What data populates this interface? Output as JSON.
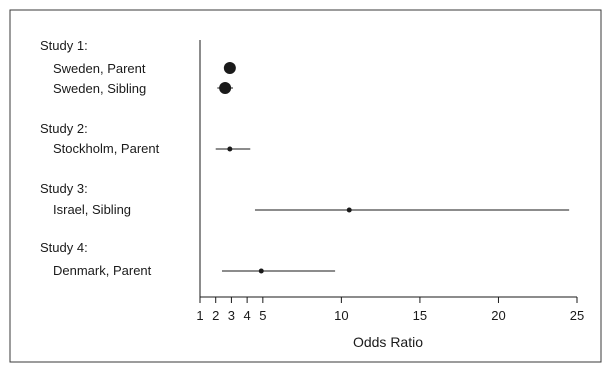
{
  "chart_data": {
    "type": "forest",
    "xlabel": "Odds Ratio",
    "xlim": [
      1,
      25
    ],
    "xticks": [
      1,
      2,
      3,
      4,
      5,
      10,
      15,
      20,
      25
    ],
    "groups": [
      {
        "label": "Study 1:",
        "rows": [
          {
            "label": "Sweden, Parent",
            "or": 2.9,
            "ci": [
              2.6,
              3.2
            ],
            "marker": "large"
          },
          {
            "label": "Sweden, Sibling",
            "or": 2.6,
            "ci": [
              2.1,
              3.1
            ],
            "marker": "large"
          }
        ]
      },
      {
        "label": "Study 2:",
        "rows": [
          {
            "label": "Stockholm, Parent",
            "or": 2.9,
            "ci": [
              2.0,
              4.2
            ],
            "marker": "small"
          }
        ]
      },
      {
        "label": "Study 3:",
        "rows": [
          {
            "label": "Israel, Sibling",
            "or": 10.5,
            "ci": [
              4.5,
              24.5
            ],
            "marker": "small"
          }
        ]
      },
      {
        "label": "Study 4:",
        "rows": [
          {
            "label": "Denmark, Parent",
            "or": 4.9,
            "ci": [
              2.4,
              9.6
            ],
            "marker": "small"
          }
        ]
      }
    ]
  }
}
